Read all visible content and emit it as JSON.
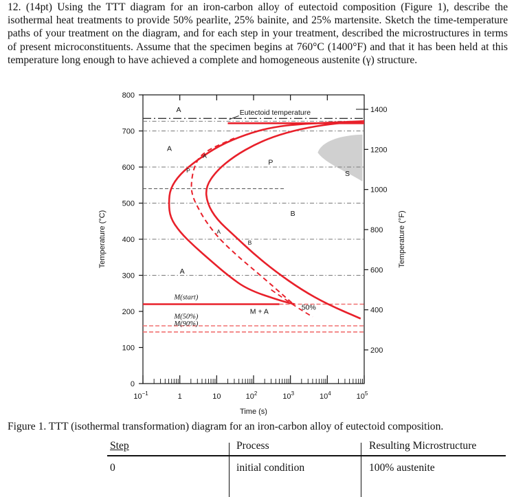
{
  "question": {
    "text": "12. (14pt) Using the TTT diagram for an iron-carbon alloy of eutectoid composition (Figure 1), describe the isothermal heat treatments to provide 50% pearlite, 25% bainite, and 25% martensite. Sketch the time-temperature paths of your treatment on the diagram, and for each step in your treatment, described the microstructures in terms of present microconstituents. Assume that the specimen begins at 760°C (1400°F) and that it has been held at this temperature long enough to have achieved a complete and homogeneous austenite (γ) structure."
  },
  "figure": {
    "caption": "Figure 1. TTT (isothermal transformation) diagram for an iron-carbon alloy of eutectoid composition.",
    "colors": {
      "curve": "#e8202a",
      "m_line": "#e8202a",
      "dashed_m": "#f07070",
      "gray_region": "#d0d0d0",
      "axis": "#111111"
    },
    "labels": {
      "eutectoid": "Eutectoid temperature",
      "A_top": "A",
      "A_left": "A",
      "P": "P",
      "A_pearlite": "A",
      "pearlite_nose": "P",
      "A_bainite": "A",
      "B_bainite": "B",
      "B": "B",
      "S": "S",
      "A_low": "A",
      "mstart": "M(start)",
      "m50": "M(50%)",
      "m90": "M(90%)",
      "MA": "M + A",
      "fifty": "50%"
    }
  },
  "chart_data": {
    "type": "line",
    "title": "",
    "xlabel": "Time (s)",
    "ylabel": "Temperature (°C)",
    "y2label": "Temperature (°F)",
    "xscale": "log",
    "xlim": [
      0.1,
      100000
    ],
    "ylim": [
      0,
      800
    ],
    "x_ticks": [
      0.1,
      1,
      10,
      100,
      1000,
      10000,
      100000
    ],
    "x_tick_labels": [
      "10",
      "1",
      "10",
      "10",
      "10",
      "10",
      "10"
    ],
    "x_tick_exponents": [
      "−1",
      "",
      "",
      "2",
      "3",
      "4",
      "5"
    ],
    "y_ticks": [
      0,
      100,
      200,
      300,
      400,
      500,
      600,
      700,
      800
    ],
    "y_tick_labels": [
      "0",
      "100",
      "200",
      "300",
      "400",
      "500",
      "600",
      "700",
      "800"
    ],
    "y2_ticks": [
      200,
      400,
      600,
      800,
      1000,
      1200,
      1400
    ],
    "y2_tick_labels": [
      "200",
      "400",
      "600",
      "800",
      "1000",
      "1200",
      "1400"
    ],
    "eutectoid_temperature": 727,
    "series": [
      {
        "x": [
          100000,
          2000,
          300,
          60,
          12,
          3,
          1,
          0.55,
          0.5,
          0.55,
          1,
          2.5,
          7,
          20,
          70,
          600,
          1300
        ],
        "y": [
          727,
          720,
          710,
          690,
          660,
          620,
          580,
          540,
          500,
          460,
          420,
          380,
          340,
          300,
          260,
          228,
          220
        ]
      },
      {
        "x": [
          100000,
          20000,
          3000,
          500,
          120,
          30,
          10,
          5,
          5.5,
          10,
          30,
          100,
          400,
          2000,
          10000,
          80000
        ],
        "y": [
          727,
          722,
          710,
          690,
          665,
          630,
          590,
          545,
          500,
          455,
          410,
          360,
          310,
          260,
          220,
          180
        ]
      },
      {
        "x": [
          30,
          4,
          2.4,
          2,
          2.2,
          3,
          5,
          12,
          40,
          200,
          1200
        ],
        "y": [
          680,
          640,
          600,
          550,
          520,
          490,
          450,
          400,
          350,
          290,
          220
        ]
      }
    ],
    "martensite_lines": [
      {
        "name": "M(start)",
        "temperature": 220
      },
      {
        "name": "M(50%)",
        "temperature": 160
      },
      {
        "name": "M(90%)",
        "temperature": 143
      }
    ]
  },
  "table": {
    "headers": [
      "Step",
      "Process",
      "Resulting Microstructure"
    ],
    "rows": [
      [
        "0",
        "initial condition",
        "100% austenite"
      ]
    ]
  }
}
